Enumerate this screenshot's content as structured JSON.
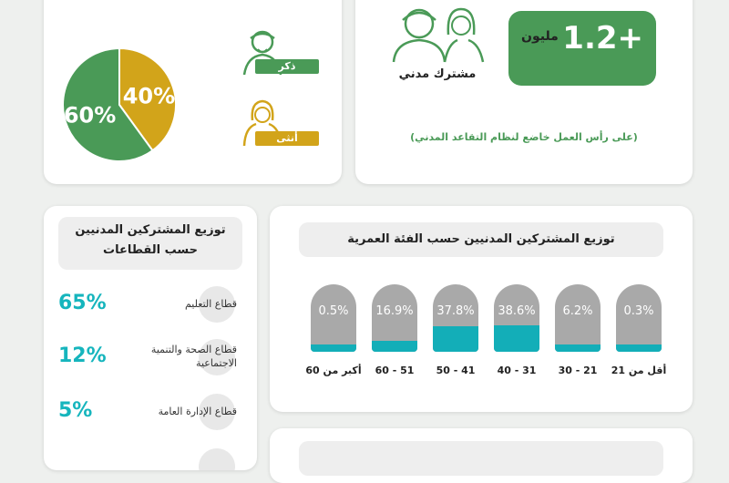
{
  "gender": {
    "male_label": "ذكر",
    "female_label": "أنثى",
    "colors": {
      "male": "#4a9a57",
      "female": "#d2a41a"
    }
  },
  "summary": {
    "value": "1.2+",
    "unit": "مليون",
    "subscribers_label": "مشترك مدني",
    "note": "(على رأس العمل خاضع لنظام التقاعد المدني)"
  },
  "sectors": {
    "title_line1": "توزيع المشتركين المدنيين",
    "title_line2": "حسب القطاعات",
    "items": [
      {
        "pct": "65%",
        "label": "قطاع التعليم"
      },
      {
        "pct": "12%",
        "label": "قطاع الصحة والتنمية الاجتماعية"
      },
      {
        "pct": "5%",
        "label": "قطاع الإدارة العامة"
      }
    ]
  },
  "age": {
    "title": "توزيع المشتركين المدنيين حسب الفئة العمرية"
  },
  "chart_data": [
    {
      "type": "pie",
      "categories": [
        "ذكر",
        "أنثى"
      ],
      "values": [
        60,
        40
      ],
      "labels": [
        "60%",
        "40%"
      ]
    },
    {
      "type": "bar",
      "title": "توزيع المشتركين المدنيين حسب الفئة العمرية",
      "categories": [
        "أقل من 21",
        "21 - 30",
        "31 - 40",
        "41 - 50",
        "51 - 60",
        "أكبر من 60"
      ],
      "values": [
        0.3,
        6.2,
        38.6,
        37.8,
        16.9,
        0.5
      ],
      "labels": [
        "0.3%",
        "6.2%",
        "38.6%",
        "37.8%",
        "16.9%",
        "0.5%"
      ],
      "ylim": [
        0,
        100
      ]
    }
  ]
}
